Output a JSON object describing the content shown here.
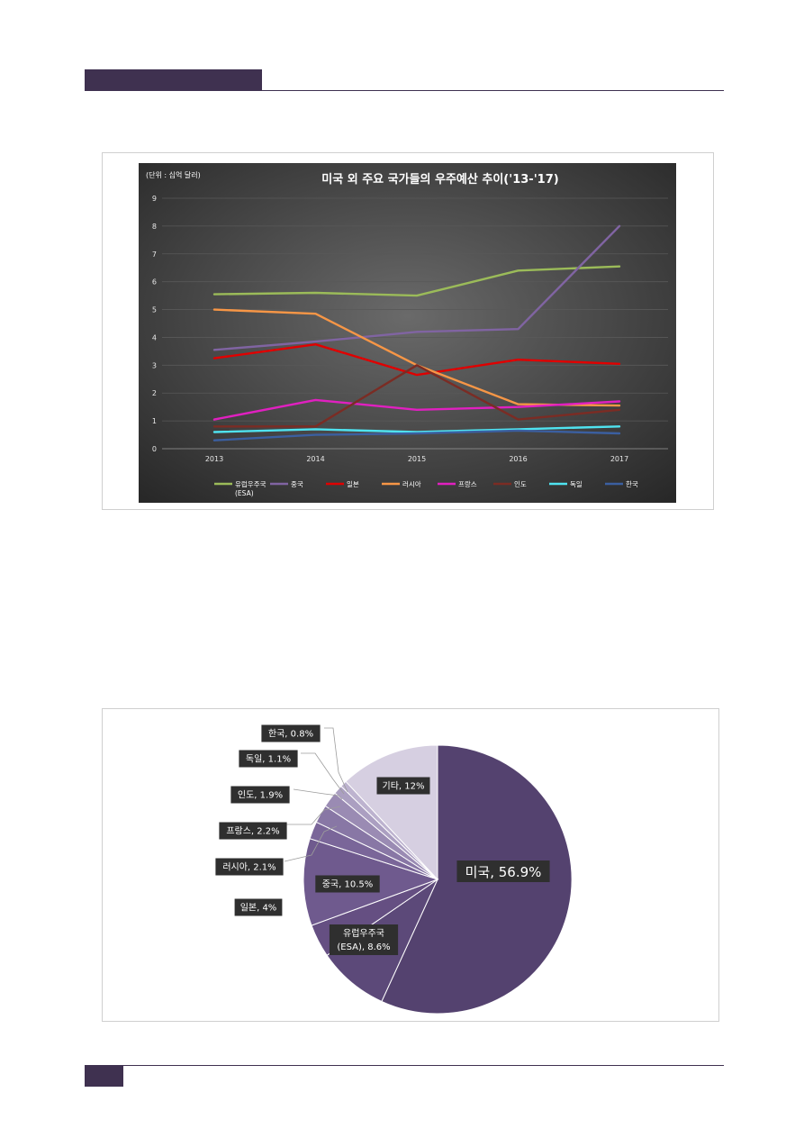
{
  "chart_data": [
    {
      "type": "line",
      "title": "미국 외 주요 국가들의 우주예산 추이('13-'17)",
      "unit_note": "(단위 : 십억 달러)",
      "x": [
        "2013",
        "2014",
        "2015",
        "2016",
        "2017"
      ],
      "ylim": [
        0,
        9
      ],
      "yticks": [
        "0",
        "1",
        "2",
        "3",
        "4",
        "5",
        "6",
        "7",
        "8",
        "9"
      ],
      "grid": true,
      "legend_position": "bottom",
      "series": [
        {
          "name": "유럽우주국 (ESA)",
          "color": "#9bbb59",
          "values": [
            5.55,
            5.6,
            5.5,
            6.4,
            6.55
          ]
        },
        {
          "name": "중국",
          "color": "#8064a2",
          "values": [
            3.55,
            3.85,
            4.2,
            4.3,
            8.0
          ]
        },
        {
          "name": "일본",
          "color": "#e00000",
          "values": [
            3.25,
            3.75,
            2.65,
            3.2,
            3.05
          ]
        },
        {
          "name": "러시아",
          "color": "#f79646",
          "values": [
            5.0,
            4.85,
            3.0,
            1.6,
            1.55
          ]
        },
        {
          "name": "프랑스",
          "color": "#e020c0",
          "values": [
            1.05,
            1.75,
            1.4,
            1.5,
            1.7
          ]
        },
        {
          "name": "인도",
          "color": "#7b2c24",
          "values": [
            0.8,
            0.8,
            3.0,
            1.05,
            1.4
          ]
        },
        {
          "name": "독일",
          "color": "#4fe3f0",
          "values": [
            0.6,
            0.7,
            0.6,
            0.7,
            0.8
          ]
        },
        {
          "name": "한국",
          "color": "#3b5fa0",
          "values": [
            0.3,
            0.5,
            0.55,
            0.65,
            0.55
          ]
        }
      ]
    },
    {
      "type": "pie",
      "slices": [
        {
          "label": "미국, 56.9%",
          "value": 56.9,
          "color": "#54426f"
        },
        {
          "label": "유럽우주국 (ESA), 8.6%",
          "value": 8.6,
          "color": "#5c4979"
        },
        {
          "label": "일본, 4%",
          "value": 4.0,
          "color": "#654f82"
        },
        {
          "label": "중국, 10.5%",
          "value": 10.5,
          "color": "#6f5a8e"
        },
        {
          "label": "러시아, 2.1%",
          "value": 2.1,
          "color": "#7a6699"
        },
        {
          "label": "프랑스, 2.2%",
          "value": 2.2,
          "color": "#8877a5"
        },
        {
          "label": "인도, 1.9%",
          "value": 1.9,
          "color": "#9a8bb3"
        },
        {
          "label": "독일, 1.1%",
          "value": 1.1,
          "color": "#ab9fc1"
        },
        {
          "label": "한국, 0.8%",
          "value": 0.8,
          "color": "#bdb3cf"
        },
        {
          "label": "기타, 12%",
          "value": 12.0,
          "color": "#d6cfe1"
        }
      ]
    }
  ]
}
